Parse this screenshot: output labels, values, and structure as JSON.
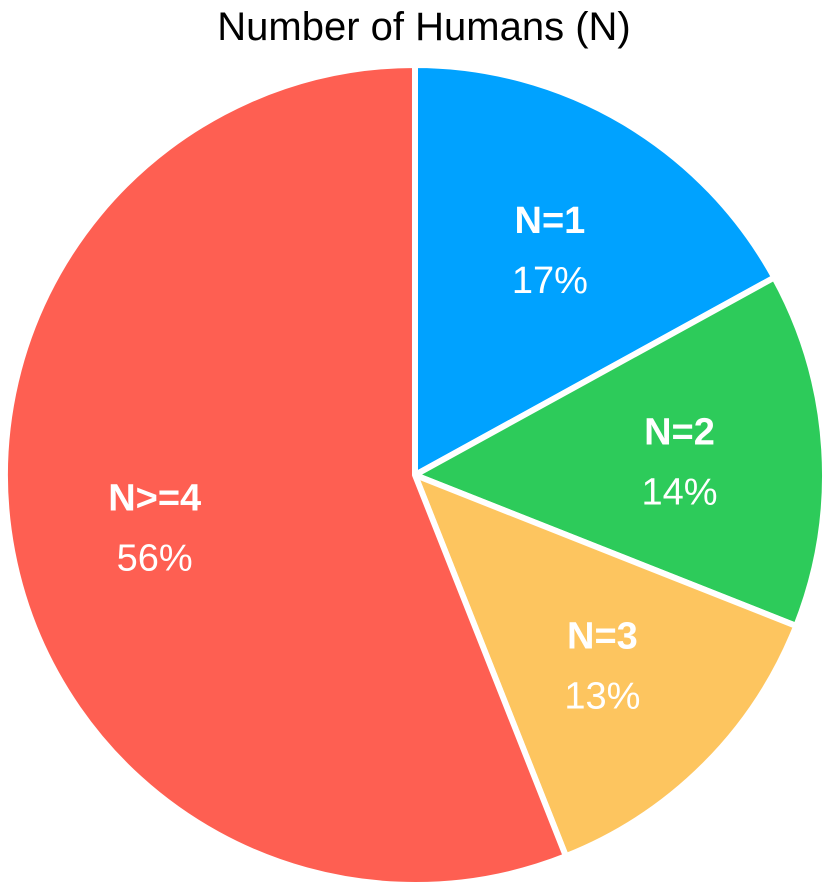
{
  "chart_data": {
    "type": "pie",
    "title": "Number of Humans (N)",
    "slices": [
      {
        "label": "N=1",
        "value": 17,
        "value_label": "17%",
        "color": "#00A2FF"
      },
      {
        "label": "N=2",
        "value": 14,
        "value_label": "14%",
        "color": "#2DCB5A"
      },
      {
        "label": "N=3",
        "value": 13,
        "value_label": "13%",
        "color": "#FDC55F"
      },
      {
        "label": "N>=4",
        "value": 56,
        "value_label": "56%",
        "color": "#FE5F52"
      }
    ],
    "start_angle": "12 o'clock",
    "direction": "clockwise",
    "legend": "none"
  }
}
